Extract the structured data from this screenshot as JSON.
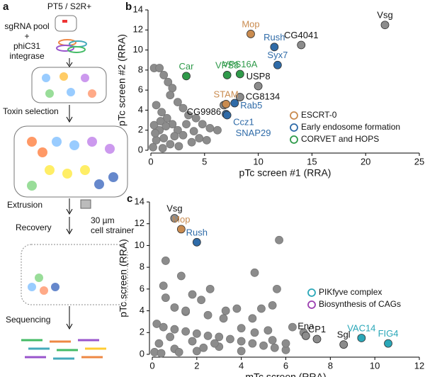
{
  "schematic": {
    "panel": "a",
    "line_label": "PT5 / S2R+",
    "pool": "sgRNA pool",
    "plus": "+",
    "integrase_1": "phiC31",
    "integrase_2": "integrase",
    "step_1": "Toxin selection",
    "step_2": "Extrusion",
    "strainer_1": "30 µm",
    "strainer_2": "cell strainer",
    "step_3": "Recovery",
    "step_4": "Sequencing"
  },
  "chart_data": [
    {
      "type": "scatter",
      "panel": "b",
      "xlabel": "pTc screen #1 (RRA)",
      "ylabel": "pTc screen #2 (RRA)",
      "xlim": [
        0,
        25
      ],
      "ylim": [
        0,
        14
      ],
      "xticks": [
        0,
        5,
        10,
        15,
        20,
        25
      ],
      "yticks": [
        0,
        2,
        4,
        6,
        8,
        10,
        12,
        14
      ],
      "legend": "center right",
      "series": [
        {
          "color": "#8c8c8c",
          "x": [
            0.3,
            0.8,
            1.2,
            1.6,
            2.0,
            1.8,
            2.5,
            3.0,
            3.5,
            4.2,
            4.8,
            5.5,
            6.2,
            0.5,
            1.0,
            1.5,
            2.0,
            2.5,
            3.0,
            0.3,
            0.8,
            1.2,
            0.5,
            1.8,
            2.6,
            0.2,
            3.8,
            4.5,
            5.2,
            0.9,
            1.4,
            2.2,
            0.4,
            1.1,
            3.3,
            4.0
          ],
          "values": [
            8.2,
            8.2,
            7.5,
            6.8,
            6.2,
            5.5,
            4.8,
            4.2,
            3.5,
            3.2,
            2.6,
            2.2,
            2.0,
            4.5,
            3.8,
            3.2,
            2.6,
            2.0,
            1.5,
            2.5,
            2.0,
            1.2,
            1.0,
            0.6,
            0.4,
            0.3,
            0.8,
            1.2,
            1.0,
            2.9,
            2.4,
            1.4,
            1.7,
            0.2,
            2.6,
            1.9
          ]
        },
        {
          "color": "#8c8c8c",
          "x": [
            21.8,
            14.0,
            10.0,
            8.3,
            6.8
          ],
          "values": [
            12.5,
            10.5,
            6.4,
            5.3,
            4.5
          ],
          "labels": [
            "Vsg",
            "CG4041",
            "USP8",
            "CG8134",
            "CG9986"
          ]
        },
        {
          "name": "ESCRT-0",
          "color": "#c98b4f",
          "x": [
            9.3,
            7.0
          ],
          "values": [
            11.6,
            4.6
          ],
          "labels": [
            "Mop",
            "STAM"
          ]
        },
        {
          "name": "Early endosome formation",
          "color": "#2f6ba8",
          "x": [
            11.5,
            11.8,
            7.8,
            7.0,
            7.1
          ],
          "values": [
            10.3,
            8.5,
            4.7,
            3.6,
            3.5
          ],
          "labels": [
            "Rush",
            "Syx7",
            "Rab5",
            "Ccz1",
            "SNAP29"
          ]
        },
        {
          "name": "CORVET and HOPS",
          "color": "#2f9a4a",
          "x": [
            3.3,
            7.1,
            8.3
          ],
          "values": [
            7.4,
            7.5,
            7.6
          ],
          "labels": [
            "Car",
            "VPS8",
            "VPS16A"
          ]
        }
      ]
    },
    {
      "type": "scatter",
      "panel": "c",
      "xlabel": "mTc screen (RRA)",
      "ylabel": "pTc screen (RRA)",
      "xlim": [
        0,
        12
      ],
      "ylim": [
        0,
        14
      ],
      "xticks": [
        0,
        2,
        4,
        6,
        8,
        10,
        12
      ],
      "yticks": [
        0,
        2,
        4,
        6,
        8,
        10,
        12,
        14
      ],
      "legend": "center right",
      "series": [
        {
          "color": "#8c8c8c",
          "x": [
            0.2,
            0.5,
            1,
            1.5,
            2,
            2.5,
            3,
            3.5,
            4,
            4.5,
            5,
            5.5,
            6,
            0.3,
            1,
            2,
            3,
            4,
            0.8,
            1.8,
            2.8,
            0.5,
            0.6,
            1,
            1.5,
            2.2,
            2.6,
            2.5,
            3.2,
            3.3,
            3.8,
            4.5,
            5.4,
            5.7,
            5.6,
            4.6,
            4.9,
            6.3,
            5.2,
            6.8,
            0.6,
            1.3,
            1.8,
            1.5,
            4.0,
            4.6,
            5.4,
            6.0,
            0.1,
            0.4,
            1.2,
            2.3
          ],
          "values": [
            2.8,
            2.5,
            2.3,
            2.1,
            1.9,
            1.7,
            1.6,
            1.4,
            1.2,
            1.0,
            0.8,
            0.6,
            0.4,
            1.0,
            0.5,
            0.3,
            0.7,
            0.3,
            1.6,
            1.2,
            1.0,
            6.3,
            5.2,
            4.3,
            3.9,
            5.0,
            6.0,
            3.6,
            3.3,
            4.0,
            4.2,
            3.3,
            4.5,
            10.5,
            6.0,
            7.5,
            4.2,
            2.5,
            2.2,
            2.0,
            8.6,
            7.2,
            5.5,
            4.0,
            2.4,
            2.0,
            1.3,
            1.0,
            0.2,
            0.1,
            0.2,
            0.6
          ]
        },
        {
          "color": "#8c8c8c",
          "x": [
            1.0,
            6.9,
            7.4,
            8.6
          ],
          "values": [
            12.5,
            1.7,
            1.4,
            0.9
          ],
          "labels": [
            "Vsg",
            "Ena",
            "CP1",
            "Sgl"
          ]
        },
        {
          "color": "#c98b4f",
          "x": [
            1.3
          ],
          "values": [
            11.5
          ],
          "labels": [
            "Mop"
          ]
        },
        {
          "color": "#2f6ba8",
          "x": [
            2.0
          ],
          "values": [
            10.3
          ],
          "labels": [
            "Rush"
          ]
        },
        {
          "name": "PIKfyve complex",
          "color": "#2aa7b8",
          "x": [
            9.4,
            10.6
          ],
          "values": [
            1.5,
            1.0
          ],
          "labels": [
            "VAC14",
            "FIG4"
          ]
        },
        {
          "name": "Biosynthesis of CAGs",
          "color": "#9b3fb0",
          "x": [],
          "values": []
        }
      ]
    }
  ]
}
